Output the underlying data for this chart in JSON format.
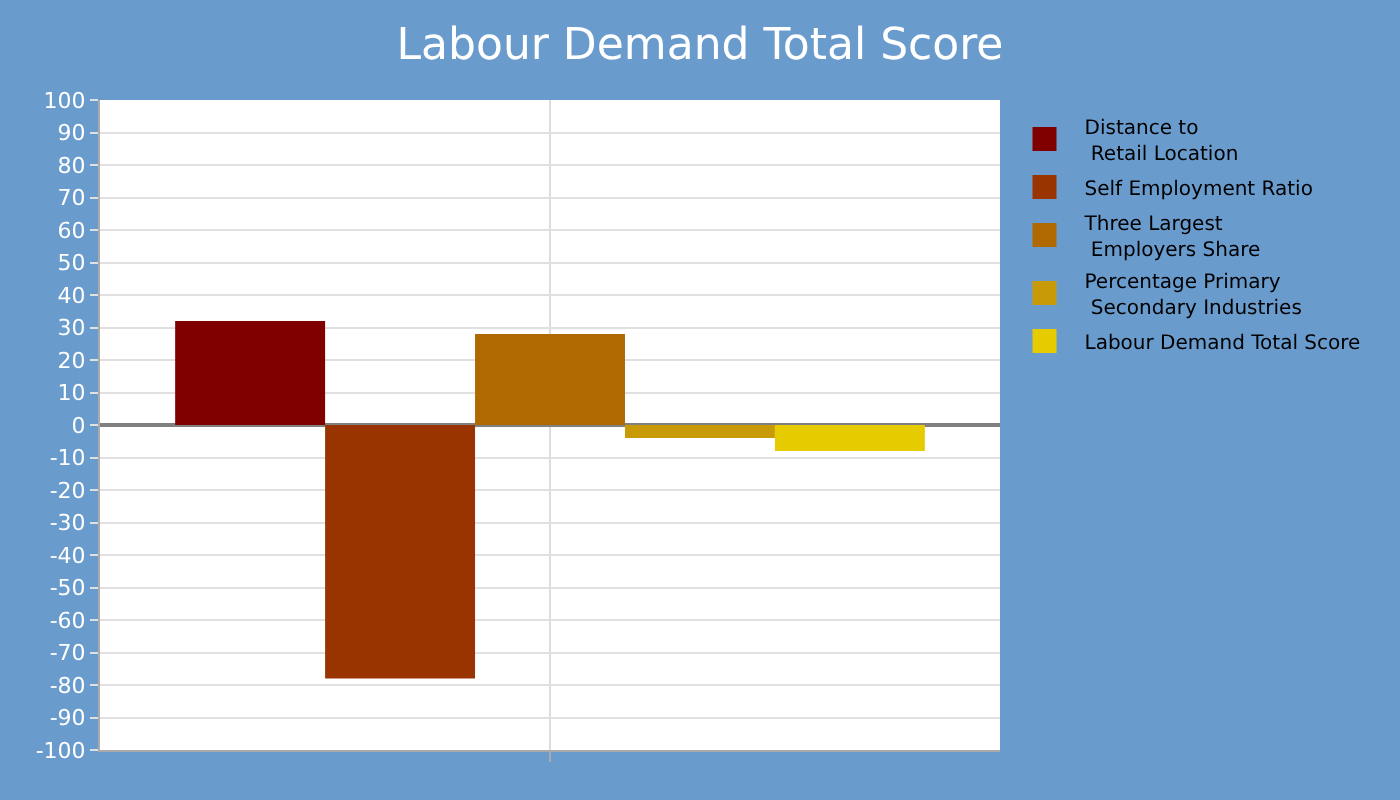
{
  "chart_data": {
    "type": "bar",
    "title": "Labour Demand Total Score",
    "categories": [
      null
    ],
    "series": [
      {
        "name": "Distance to\nRetail Location",
        "color": "#800000",
        "values": [
          32
        ]
      },
      {
        "name": "Self Employment Ratio",
        "color": "#993300",
        "values": [
          -78
        ]
      },
      {
        "name": "Three Largest\nEmployers Share",
        "color": "#b06800",
        "values": [
          28
        ]
      },
      {
        "name": "Percentage Primary\nSecondary Industries",
        "color": "#c99a08",
        "values": [
          -4
        ]
      },
      {
        "name": "Labour Demand Total Score",
        "color": "#e5cb00",
        "values": [
          -8
        ]
      }
    ],
    "ylim": [
      -100,
      100
    ],
    "yticks": [
      -100,
      -90,
      -80,
      -70,
      -60,
      -50,
      -40,
      -30,
      -20,
      -10,
      0,
      10,
      20,
      30,
      40,
      50,
      60,
      70,
      80,
      90,
      100
    ],
    "grid": true,
    "legend": "right"
  }
}
